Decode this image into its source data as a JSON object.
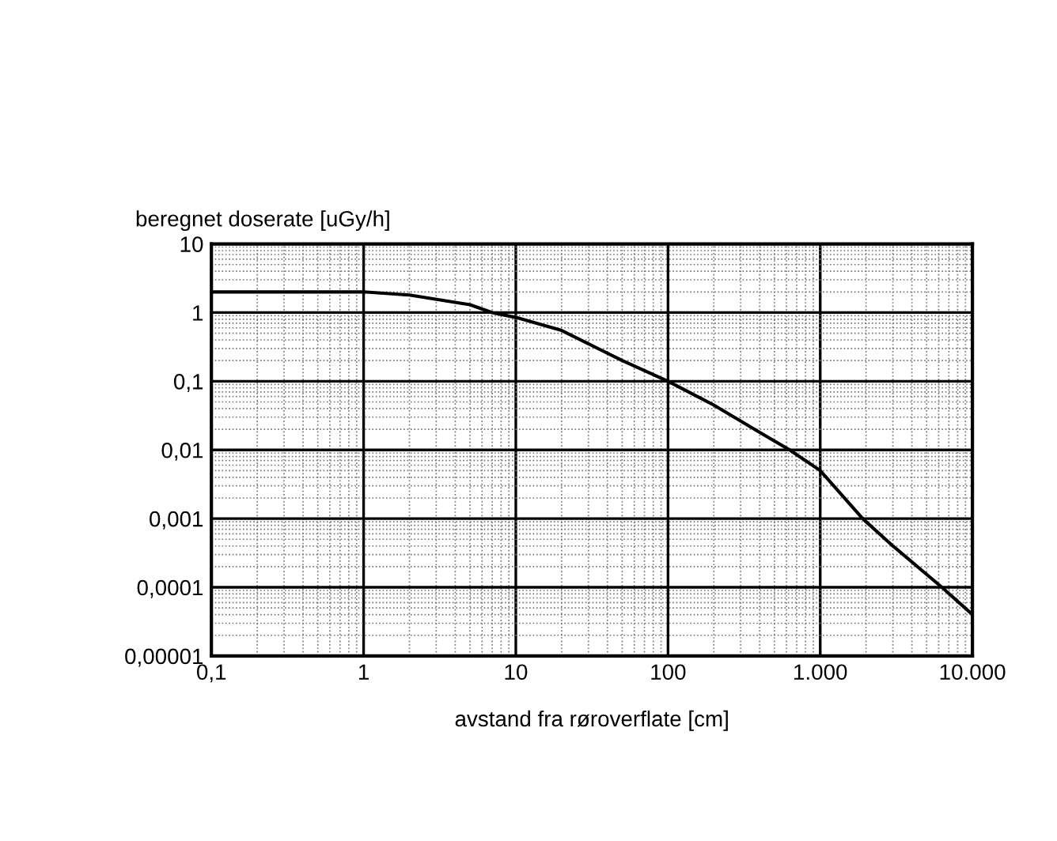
{
  "chart_data": {
    "type": "line",
    "ylabel": "beregnet doserate [uGy/h]",
    "xlabel": "avstand fra røroverflate [cm]",
    "log": "xy",
    "grid": true,
    "marker": "none",
    "line_style": "solid",
    "x": [
      0.1,
      1,
      2,
      5,
      7,
      10,
      20,
      50,
      100,
      200,
      400,
      630,
      1000,
      1900,
      3000,
      6300,
      10000
    ],
    "series": [
      {
        "color": "#000000",
        "values": [
          2,
          2,
          1.8,
          1.3,
          1,
          0.85,
          0.55,
          0.2,
          0.1,
          0.045,
          0.018,
          0.01,
          0.005,
          0.001,
          0.0004,
          0.0001,
          4e-05
        ]
      }
    ],
    "xlim": [
      0.1,
      10000
    ],
    "ylim": [
      1e-05,
      10
    ],
    "xticks": [
      {
        "value": 0.1,
        "label": "0,1"
      },
      1,
      10,
      100,
      {
        "value": 1000,
        "label": "1.000"
      },
      {
        "value": 10000,
        "label": "10.000"
      }
    ],
    "yticks": [
      {
        "value": 1e-05,
        "label": "0,00001"
      },
      {
        "value": 0.0001,
        "label": "0,0001"
      },
      {
        "value": 0.001,
        "label": "0,001"
      },
      {
        "value": 0.01,
        "label": "0,01"
      },
      {
        "value": 0.1,
        "label": "0,1"
      },
      1,
      10
    ]
  }
}
